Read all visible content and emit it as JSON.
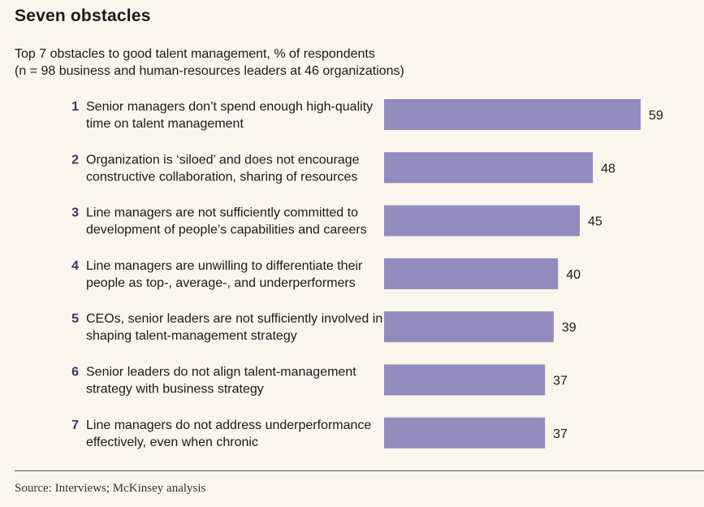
{
  "title": "Seven obstacles",
  "subtitle": {
    "line1": "Top 7 obstacles to good talent management, % of respondents",
    "line2": "(n = 98 business and human-resources leaders at 46 organizations)"
  },
  "source": "Source: Interviews; McKinsey analysis",
  "colors": {
    "bar": "#938abd",
    "rank": "#4b2a6e",
    "background": "#faf6ed"
  },
  "chart_data": {
    "type": "bar",
    "orientation": "horizontal",
    "title": "Seven obstacles",
    "xlabel": "% of respondents",
    "ylabel": "",
    "xlim": [
      0,
      60
    ],
    "grid": false,
    "legend": "none",
    "categories": [
      {
        "rank": "1",
        "lines": [
          "Senior managers don’t spend enough high-quality",
          "time on talent management"
        ]
      },
      {
        "rank": "2",
        "lines": [
          "Organization is ‘siloed’ and does not encourage",
          "constructive collaboration, sharing of resources"
        ]
      },
      {
        "rank": "3",
        "lines": [
          "Line managers are not sufficiently committed to",
          "development of people’s capabilities and careers"
        ]
      },
      {
        "rank": "4",
        "lines": [
          "Line managers are unwilling to differentiate their",
          "people as top-, average-, and underperformers"
        ]
      },
      {
        "rank": "5",
        "lines": [
          "CEOs, senior leaders are not sufficiently involved in",
          "shaping talent-management strategy"
        ]
      },
      {
        "rank": "6",
        "lines": [
          "Senior leaders do not align talent-management",
          "strategy with business strategy"
        ]
      },
      {
        "rank": "7",
        "lines": [
          "Line managers do not address underperformance",
          "effectively, even when chronic"
        ]
      }
    ],
    "values": [
      59,
      48,
      45,
      40,
      39,
      37,
      37
    ]
  }
}
